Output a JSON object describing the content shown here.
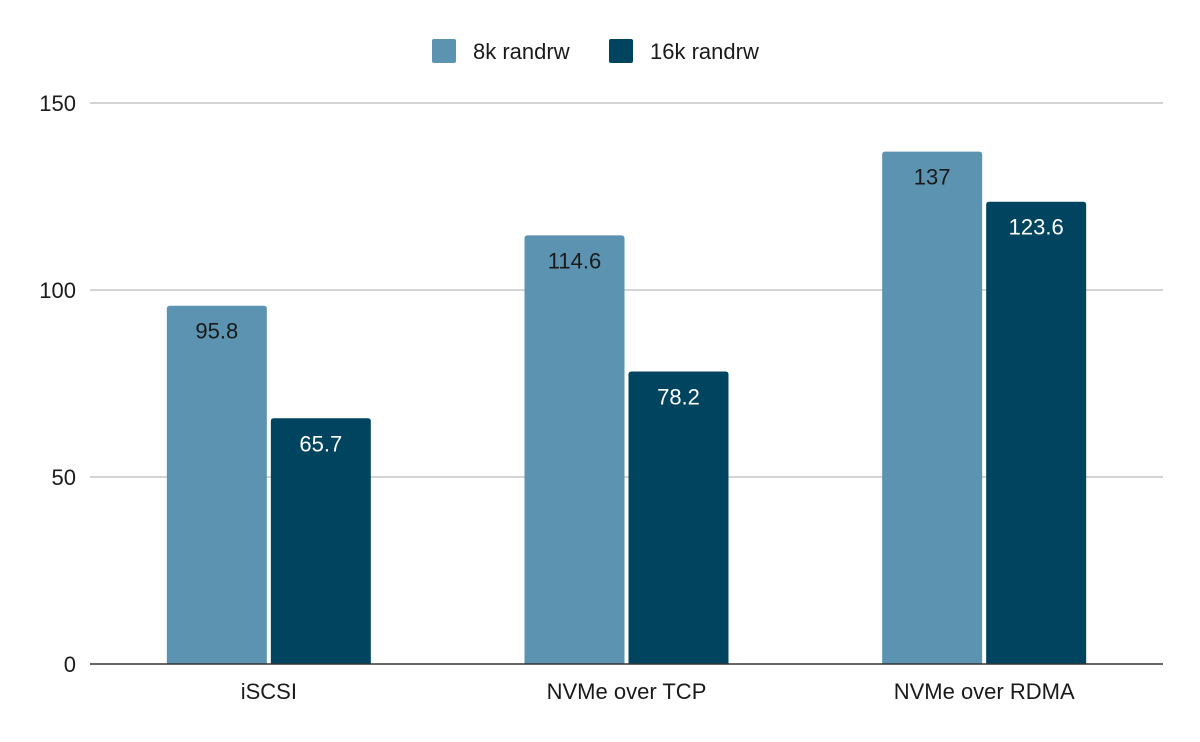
{
  "chart_data": {
    "type": "bar",
    "title": "",
    "xlabel": "",
    "ylabel": "",
    "categories": [
      "iSCSI",
      "NVMe over TCP",
      "NVMe over RDMA"
    ],
    "series": [
      {
        "name": "8k randrw",
        "color": "#5b93b1",
        "label_color": "#1a1a1a",
        "values": [
          95.8,
          114.6,
          137
        ]
      },
      {
        "name": "16k randrw",
        "color": "#00445f",
        "label_color": "#ffffff",
        "values": [
          65.7,
          78.2,
          123.6
        ]
      }
    ],
    "data_labels": [
      [
        "95.8",
        "114.6",
        "137"
      ],
      [
        "65.7",
        "78.2",
        "123.6"
      ]
    ],
    "ylim": [
      0,
      150
    ],
    "yticks": [
      0,
      50,
      100,
      150
    ],
    "ytick_labels": [
      "0",
      "50",
      "100",
      "150"
    ],
    "grid": true,
    "legend_position": "top-center"
  }
}
